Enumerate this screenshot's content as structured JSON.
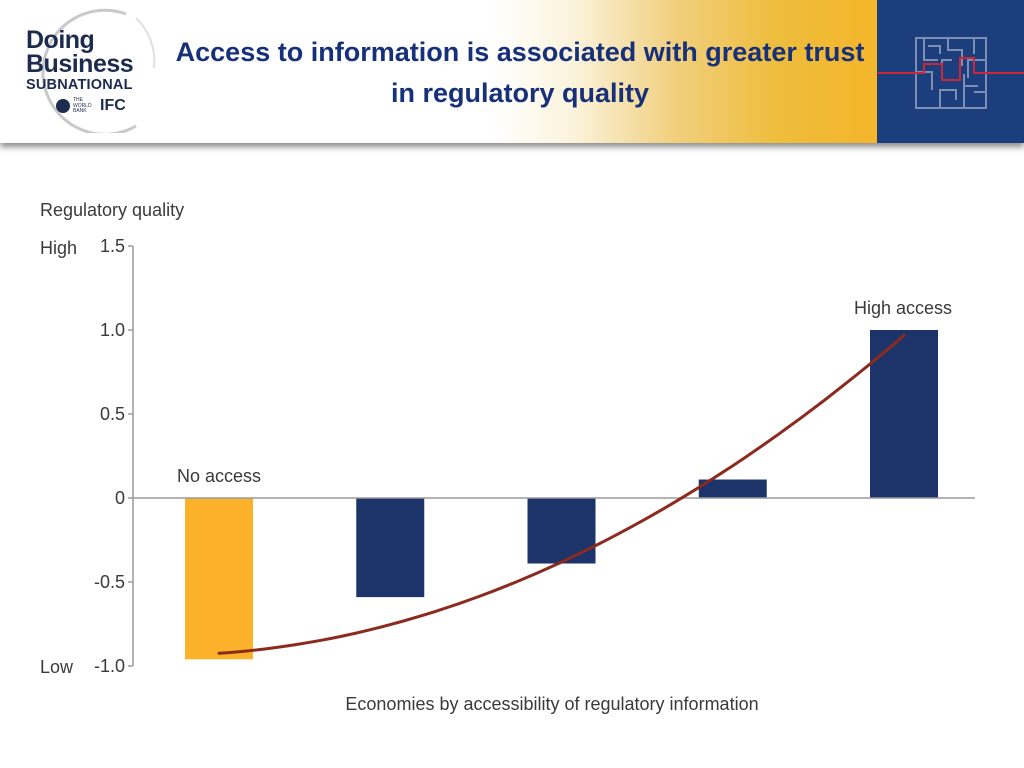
{
  "header": {
    "logo": {
      "line1": "Doing",
      "line2": "Business",
      "line3": "SUBNATIONAL",
      "world_bank": "THE\nWORLD\nBANK",
      "ifc": "IFC"
    },
    "title": "Access to information is associated with greater trust in regulatory quality",
    "maze_icon": "maze-icon"
  },
  "colors": {
    "title": "#16307a",
    "bar": "#1d346b",
    "bar_highlight": "#fbb12a",
    "curve": "#8b2a1f",
    "header_accent": "#f5b52a",
    "header_panel": "#1d3e7c"
  },
  "chart_data": {
    "type": "bar",
    "title": "",
    "ylabel": "Regulatory quality",
    "xlabel": "Economies by accessibility of regulatory information",
    "ylim": [
      -1.0,
      1.5
    ],
    "yticks": [
      "1.5",
      "1.0",
      "0.5",
      "0",
      "-0.5",
      "-1.0"
    ],
    "ytick_values": [
      1.5,
      1.0,
      0.5,
      0,
      -0.5,
      -1.0
    ],
    "y_high_label": "High",
    "y_low_label": "Low",
    "categories": [
      "",
      "",
      "",
      "",
      ""
    ],
    "values": [
      -0.96,
      -0.59,
      -0.39,
      0.11,
      1.0
    ],
    "bar_colors": [
      "#fbb12a",
      "#1d346b",
      "#1d346b",
      "#1d346b",
      "#1d346b"
    ],
    "annotations": {
      "first": "No access",
      "last": "High access"
    },
    "trend": {
      "x": [
        0,
        1,
        2,
        3,
        4
      ],
      "y": [
        -0.94,
        -0.72,
        -0.39,
        0.17,
        0.98
      ]
    },
    "grid": false,
    "legend": "none"
  }
}
